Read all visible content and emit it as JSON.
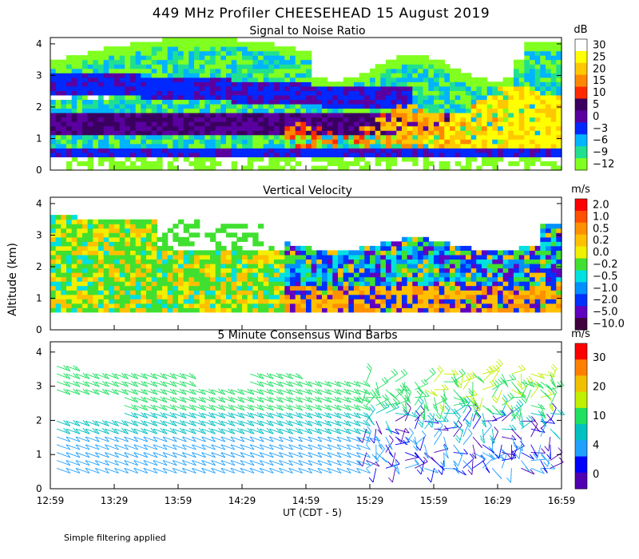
{
  "chart_data": {
    "type": "heatmap",
    "title": "449 MHz Profiler CHEESEHEAD 15 August 2019",
    "xlabel": "UT  (CDT - 5)",
    "ylabel": "Altitude (km)",
    "x_ticks": [
      "12:59",
      "13:29",
      "13:59",
      "14:29",
      "14:59",
      "15:29",
      "15:59",
      "16:29",
      "16:59"
    ],
    "x_range_minutes_ut": [
      779,
      1019
    ],
    "panels": [
      {
        "id": "snr",
        "title": "Signal to Noise Ratio",
        "colorbar_unit": "dB",
        "ylim": [
          0,
          4.2
        ],
        "y_ticks": [
          "0",
          "1",
          "2",
          "3",
          "4"
        ],
        "colorbar_labels": [
          "30",
          "25",
          "20",
          "15",
          "10",
          "5",
          "0",
          "−3",
          "−6",
          "−9",
          "−12"
        ],
        "colorbar_colors": [
          "#ffffff",
          "#ffff00",
          "#ffc800",
          "#ff8800",
          "#ff2a00",
          "#3a0060",
          "#5a00a0",
          "#0028ff",
          "#00b4ff",
          "#20e090",
          "#80ff20"
        ]
      },
      {
        "id": "vv",
        "title": "Vertical Velocity",
        "colorbar_unit": "m/s",
        "ylim": [
          0,
          4.2
        ],
        "y_ticks": [
          "0",
          "1",
          "2",
          "3",
          "4"
        ],
        "colorbar_labels": [
          "2.0",
          "1.0",
          "0.5",
          "0.2",
          "0.0",
          "−0.2",
          "−0.5",
          "−1.0",
          "−2.0",
          "−5.0",
          "−10.0"
        ],
        "colorbar_colors": [
          "#ff0000",
          "#ff5000",
          "#ff9000",
          "#ffc000",
          "#f0f000",
          "#40e030",
          "#00e0e0",
          "#0090ff",
          "#0030ff",
          "#6000c0",
          "#400040"
        ]
      },
      {
        "id": "wind",
        "title": "5 Minute Consensus Wind Barbs",
        "colorbar_unit": "m/s",
        "ylim": [
          0,
          4.3
        ],
        "y_ticks": [
          "0",
          "1",
          "2",
          "3",
          "4"
        ],
        "colorbar_labels": [
          "30",
          "20",
          "10",
          "4",
          "0"
        ],
        "colorbar_colors": [
          "#ff0000",
          "#ff8000",
          "#f0c000",
          "#c0f000",
          "#20e060",
          "#00c0c0",
          "#20a0ff",
          "#0000ff",
          "#5000b0"
        ]
      }
    ],
    "footnote": "Simple filtering applied"
  }
}
